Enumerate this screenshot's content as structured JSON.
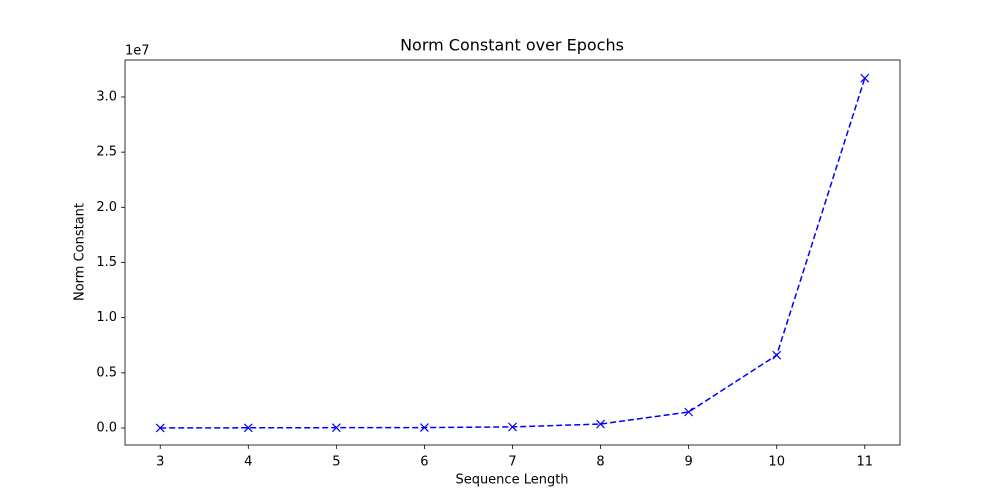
{
  "chart_data": {
    "type": "line",
    "title": "Norm Constant over Epochs",
    "x_label": "Sequence Length",
    "y_label": "Norm Constant",
    "y_offset_label": "1e7",
    "x": [
      3,
      4,
      5,
      6,
      7,
      8,
      9,
      10,
      11
    ],
    "series": [
      {
        "color": "#0000ff",
        "marker": "x",
        "dashed": true,
        "values": [
          5000,
          20000,
          30000,
          40000,
          100000,
          360000,
          1450000,
          6600000,
          31700000
        ]
      }
    ],
    "xlim": [
      2.6,
      11.4
    ],
    "xticks": [
      3,
      4,
      5,
      6,
      7,
      8,
      9,
      10,
      11
    ],
    "ylim": [
      -1540000,
      33350000
    ],
    "yticks": [
      {
        "value": 0,
        "label": "0.0"
      },
      {
        "value": 5000000,
        "label": "0.5"
      },
      {
        "value": 10000000,
        "label": "1.0"
      },
      {
        "value": 15000000,
        "label": "1.5"
      },
      {
        "value": 20000000,
        "label": "2.0"
      },
      {
        "value": 25000000,
        "label": "2.5"
      },
      {
        "value": 30000000,
        "label": "3.0"
      }
    ],
    "grid": false
  }
}
